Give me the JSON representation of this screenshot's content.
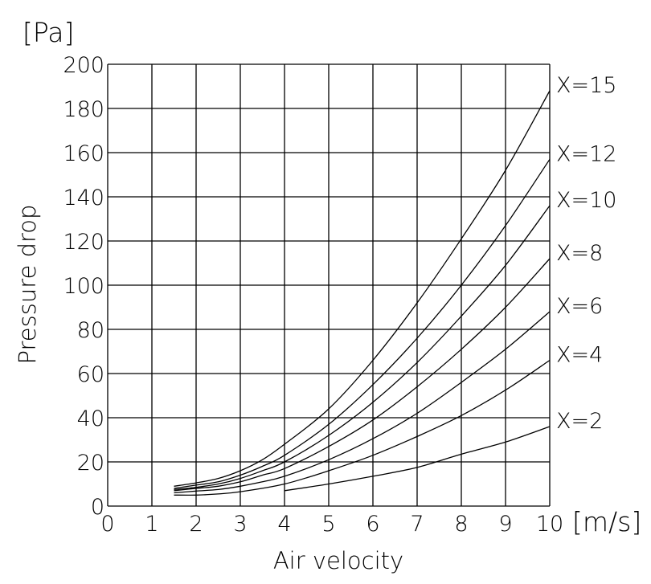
{
  "chart_data": {
    "type": "line",
    "title": "",
    "xlabel": "Air velocity",
    "ylabel": "Pressure drop",
    "x_unit": "[m/s]",
    "y_unit": "[Pa]",
    "xlim": [
      0,
      10
    ],
    "ylim": [
      0,
      200
    ],
    "x_ticks": [
      "0",
      "1",
      "2",
      "3",
      "4",
      "5",
      "6",
      "7",
      "8",
      "9",
      "10"
    ],
    "y_ticks": [
      "0",
      "20",
      "40",
      "60",
      "80",
      "100",
      "120",
      "140",
      "160",
      "180",
      "200"
    ],
    "grid": true,
    "series": [
      {
        "name": "X=15",
        "x": [
          1.5,
          2,
          2.5,
          3,
          3.5,
          4,
          5,
          6,
          7,
          8,
          9,
          10
        ],
        "values": [
          9,
          10.5,
          12.5,
          16,
          21,
          28,
          44,
          66,
          92,
          121,
          152,
          188
        ]
      },
      {
        "name": "X=12",
        "x": [
          1.5,
          2,
          2.5,
          3,
          3.5,
          4,
          5,
          6,
          7,
          8,
          9,
          10
        ],
        "values": [
          8,
          9.5,
          11,
          14,
          18,
          23,
          37,
          55,
          76,
          100,
          127,
          157
        ]
      },
      {
        "name": "X=10",
        "x": [
          1.5,
          2,
          2.5,
          3,
          3.5,
          4,
          5,
          6,
          7,
          8,
          9,
          10
        ],
        "values": [
          7.5,
          8.5,
          10,
          12.5,
          16,
          20,
          32,
          47,
          65,
          86,
          109,
          136
        ]
      },
      {
        "name": "X=8",
        "x": [
          1.5,
          2,
          2.5,
          3,
          3.5,
          4,
          5,
          6,
          7,
          8,
          9,
          10
        ],
        "values": [
          7,
          8,
          9,
          11,
          14,
          17,
          27,
          39,
          54,
          71,
          90,
          112
        ]
      },
      {
        "name": "X=6",
        "x": [
          1.5,
          2,
          2.5,
          3,
          3.5,
          4,
          5,
          6,
          7,
          8,
          9,
          10
        ],
        "values": [
          6,
          6.8,
          7.5,
          9,
          11,
          13.5,
          21,
          30.5,
          42,
          56,
          71,
          88
        ]
      },
      {
        "name": "X=4",
        "x": [
          1.5,
          2,
          2.5,
          3,
          4,
          5,
          6,
          7,
          8,
          9,
          10
        ],
        "values": [
          5,
          5,
          5.5,
          6.5,
          10,
          16,
          23,
          31.5,
          41,
          52.5,
          66
        ]
      },
      {
        "name": "X=2",
        "x": [
          4,
          5,
          6,
          7,
          8,
          9,
          10
        ],
        "values": [
          7,
          10,
          13.5,
          17.5,
          23.5,
          29,
          36
        ]
      }
    ]
  }
}
